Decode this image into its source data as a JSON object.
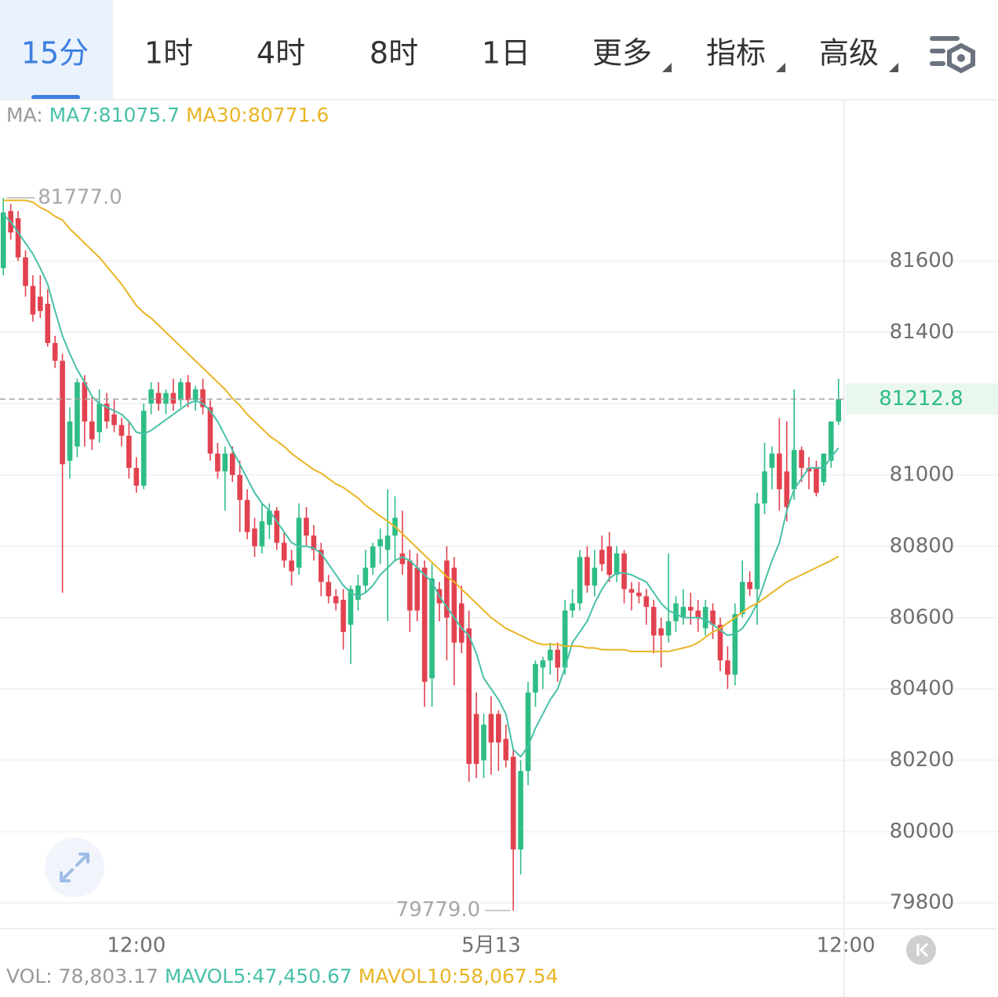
{
  "toolbar": {
    "tabs": [
      "15分",
      "1时",
      "4时",
      "8时",
      "1日"
    ],
    "menus": [
      "更多",
      "指标",
      "高级"
    ]
  },
  "chart_data": {
    "type": "candlestick",
    "up_color": "#2ebd85",
    "down_color": "#e2424f",
    "ma_legend": [
      {
        "label": "MA:",
        "color": "#9a9a9a"
      },
      {
        "label": "MA7:81075.7",
        "color": "#48c0a8"
      },
      {
        "label": "MA30:80771.6",
        "color": "#e9b526"
      }
    ],
    "volume_legend": [
      {
        "label": "VOL: 78,803.17",
        "color": "#9a9a9a"
      },
      {
        "label": "MAVOL5:47,450.67",
        "color": "#48c0a8"
      },
      {
        "label": "MAVOL10:58,067.54",
        "color": "#e9b526"
      }
    ],
    "xlim": [
      -0.45,
      114.2
    ],
    "xticks": [
      {
        "value": 18,
        "label": "12:00"
      },
      {
        "value": 66,
        "label": "5月13"
      },
      {
        "value": 114,
        "label": "12:00"
      }
    ],
    "ylim": [
      79730,
      82050
    ],
    "yticks": [
      79800,
      80000,
      80200,
      80400,
      80600,
      80800,
      81000,
      81200,
      81400,
      81600
    ],
    "grid": true,
    "max_label": {
      "value": 81777,
      "label": "81777.0"
    },
    "min_label": {
      "value": 79779,
      "label": "79779.0"
    },
    "last_price": 81212.8,
    "open": [
      81580,
      81740,
      81720,
      81610,
      81530,
      81500,
      81480,
      81370,
      81320,
      81040,
      81080,
      81260,
      81150,
      81120,
      81200,
      81170,
      81140,
      81110,
      81020,
      80970,
      81200,
      81230,
      81200,
      81230,
      81210,
      81260,
      81210,
      81240,
      81190,
      81060,
      81010,
      81060,
      81000,
      80930,
      80850,
      80800,
      80860,
      80900,
      80810,
      80760,
      80740,
      80880,
      80830,
      80790,
      80700,
      80660,
      80650,
      80580,
      80650,
      80690,
      80740,
      80800,
      80790,
      80830,
      80780,
      80760,
      80740,
      80740,
      80430,
      80680,
      80760,
      80740,
      80640,
      80570,
      80330,
      80200,
      80330,
      80330,
      80260,
      80210,
      79950,
      80170,
      80390,
      80460,
      80480,
      80510,
      80460,
      80620,
      80640,
      80770,
      80690,
      80790,
      80800,
      80720,
      80780,
      80680,
      80670,
      80660,
      80630,
      80570,
      80550,
      80590,
      80600,
      80630,
      80620,
      80570,
      80620,
      80580,
      80480,
      80440,
      80610,
      80700,
      80680,
      80920,
      81020,
      81060,
      81010,
      80960,
      81070,
      81020,
      81020,
      80980,
      81040,
      81150
    ],
    "high": [
      81777,
      81760,
      81740,
      81630,
      81560,
      81560,
      81520,
      81390,
      81340,
      81190,
      81270,
      81280,
      81220,
      81240,
      81230,
      81210,
      81160,
      81150,
      81050,
      81200,
      81260,
      81260,
      81240,
      81270,
      81270,
      81280,
      81250,
      81270,
      81210,
      81090,
      81080,
      81080,
      81040,
      80960,
      80880,
      80920,
      80920,
      80910,
      80840,
      80790,
      80920,
      80910,
      80860,
      80810,
      80720,
      80680,
      80680,
      80690,
      80720,
      80790,
      80810,
      80850,
      80960,
      80940,
      80900,
      80790,
      80780,
      80760,
      80750,
      80700,
      80800,
      80770,
      80690,
      80620,
      80390,
      80330,
      80380,
      80340,
      80300,
      80230,
      80200,
      80420,
      80480,
      80490,
      80530,
      80530,
      80650,
      80680,
      80790,
      80800,
      80790,
      80830,
      80840,
      80800,
      80790,
      80700,
      80700,
      80680,
      80650,
      80600,
      80780,
      80660,
      80680,
      80670,
      80650,
      80650,
      80640,
      80600,
      80520,
      80640,
      80760,
      80730,
      80950,
      81090,
      81080,
      81160,
      81150,
      81240,
      81080,
      81050,
      81040,
      81060,
      81150,
      81270
    ],
    "low": [
      81560,
      81660,
      81600,
      81500,
      81430,
      81440,
      81360,
      81300,
      80670,
      80990,
      81050,
      81080,
      81070,
      81090,
      81130,
      81120,
      81080,
      80990,
      80950,
      80960,
      81170,
      81180,
      81170,
      81180,
      81190,
      81190,
      81180,
      81170,
      81040,
      80990,
      80900,
      80980,
      80840,
      80820,
      80770,
      80780,
      80820,
      80790,
      80740,
      80690,
      80720,
      80800,
      80760,
      80660,
      80640,
      80620,
      80510,
      80470,
      80620,
      80670,
      80720,
      80750,
      80590,
      80760,
      80720,
      80560,
      80590,
      80350,
      80350,
      80590,
      80480,
      80410,
      80500,
      80140,
      80150,
      80150,
      80160,
      80170,
      80180,
      79779,
      79880,
      80130,
      80350,
      80400,
      80440,
      80420,
      80440,
      80600,
      80620,
      80670,
      80660,
      80730,
      80700,
      80700,
      80640,
      80620,
      80640,
      80580,
      80500,
      80460,
      80530,
      80560,
      80580,
      80580,
      80560,
      80550,
      80540,
      80450,
      80400,
      80410,
      80600,
      80660,
      80580,
      80890,
      80960,
      80900,
      80870,
      80930,
      80980,
      80960,
      80940,
      80970,
      81020,
      81140
    ],
    "close": [
      81736,
      81680,
      81610,
      81530,
      81450,
      81460,
      81370,
      81320,
      81030,
      81150,
      81260,
      81150,
      81100,
      81200,
      81150,
      81140,
      81110,
      81020,
      80970,
      81180,
      81240,
      81200,
      81230,
      81200,
      81260,
      81210,
      81240,
      81190,
      81060,
      81010,
      81060,
      81000,
      80930,
      80840,
      80800,
      80870,
      80900,
      80810,
      80760,
      80730,
      80880,
      80830,
      80790,
      80700,
      80660,
      80640,
      80560,
      80680,
      80690,
      80740,
      80800,
      80820,
      80830,
      80880,
      80750,
      80620,
      80620,
      80420,
      80710,
      80640,
      80600,
      80530,
      80530,
      80190,
      80190,
      80300,
      80250,
      80250,
      80200,
      79950,
      80170,
      80390,
      80470,
      80480,
      80510,
      80460,
      80620,
      80640,
      80770,
      80690,
      80740,
      80750,
      80720,
      80780,
      80680,
      80670,
      80660,
      80630,
      80550,
      80550,
      80590,
      80640,
      80630,
      80620,
      80600,
      80630,
      80580,
      80480,
      80440,
      80610,
      80700,
      80680,
      80920,
      81010,
      81060,
      80960,
      80910,
      81070,
      81020,
      81010,
      80950,
      81060,
      81150,
      81212.8
    ],
    "ma_series": [
      {
        "name": "MA7",
        "color": "#48c0a8",
        "values": [
          81730,
          81710,
          81680,
          81650,
          81620,
          81580,
          81535,
          81460,
          81390,
          81340,
          81295,
          81260,
          81220,
          81200,
          81190,
          81180,
          81170,
          81150,
          81120,
          81115,
          81125,
          81140,
          81155,
          81170,
          81185,
          81200,
          81208,
          81200,
          81180,
          81150,
          81110,
          81070,
          81030,
          80990,
          80950,
          80920,
          80900,
          80870,
          80840,
          80810,
          80800,
          80800,
          80795,
          80780,
          80750,
          80720,
          80690,
          80670,
          80660,
          80670,
          80690,
          80720,
          80740,
          80760,
          80770,
          80760,
          80740,
          80720,
          80700,
          80660,
          80630,
          80600,
          80570,
          80550,
          80500,
          80430,
          80400,
          80370,
          80330,
          80230,
          80210,
          80240,
          80290,
          80330,
          80370,
          80400,
          80460,
          80530,
          80560,
          80590,
          80640,
          80680,
          80710,
          80725,
          80725,
          80720,
          80710,
          80700,
          80670,
          80640,
          80620,
          80610,
          80600,
          80600,
          80600,
          80595,
          80580,
          80565,
          80550,
          80555,
          80570,
          80600,
          80640,
          80700,
          80760,
          80810,
          80900,
          80960,
          80990,
          81020,
          81020,
          81020,
          81050,
          81075.7
        ]
      },
      {
        "name": "MA30",
        "color": "#e9b526",
        "values": [
          81770,
          81770,
          81770,
          81770,
          81765,
          81750,
          81740,
          81725,
          81715,
          81690,
          81670,
          81650,
          81630,
          81610,
          81585,
          81560,
          81535,
          81505,
          81475,
          81455,
          81440,
          81420,
          81400,
          81380,
          81360,
          81340,
          81320,
          81300,
          81280,
          81260,
          81240,
          81215,
          81195,
          81170,
          81150,
          81130,
          81110,
          81095,
          81080,
          81060,
          81045,
          81030,
          81015,
          81005,
          80990,
          80975,
          80965,
          80950,
          80935,
          80915,
          80900,
          80885,
          80870,
          80855,
          80835,
          80815,
          80795,
          80775,
          80755,
          80735,
          80715,
          80700,
          80680,
          80660,
          80640,
          80620,
          80600,
          80585,
          80570,
          80560,
          80550,
          80540,
          80530,
          80525,
          80525,
          80525,
          80520,
          80520,
          80520,
          80515,
          80515,
          80510,
          80510,
          80510,
          80510,
          80505,
          80505,
          80505,
          80505,
          80505,
          80505,
          80510,
          80515,
          80520,
          80530,
          80545,
          80560,
          80570,
          80585,
          80600,
          80615,
          80630,
          80640,
          80655,
          80670,
          80685,
          80700,
          80710,
          80720,
          80730,
          80740,
          80750,
          80760,
          80771.6
        ]
      }
    ]
  }
}
